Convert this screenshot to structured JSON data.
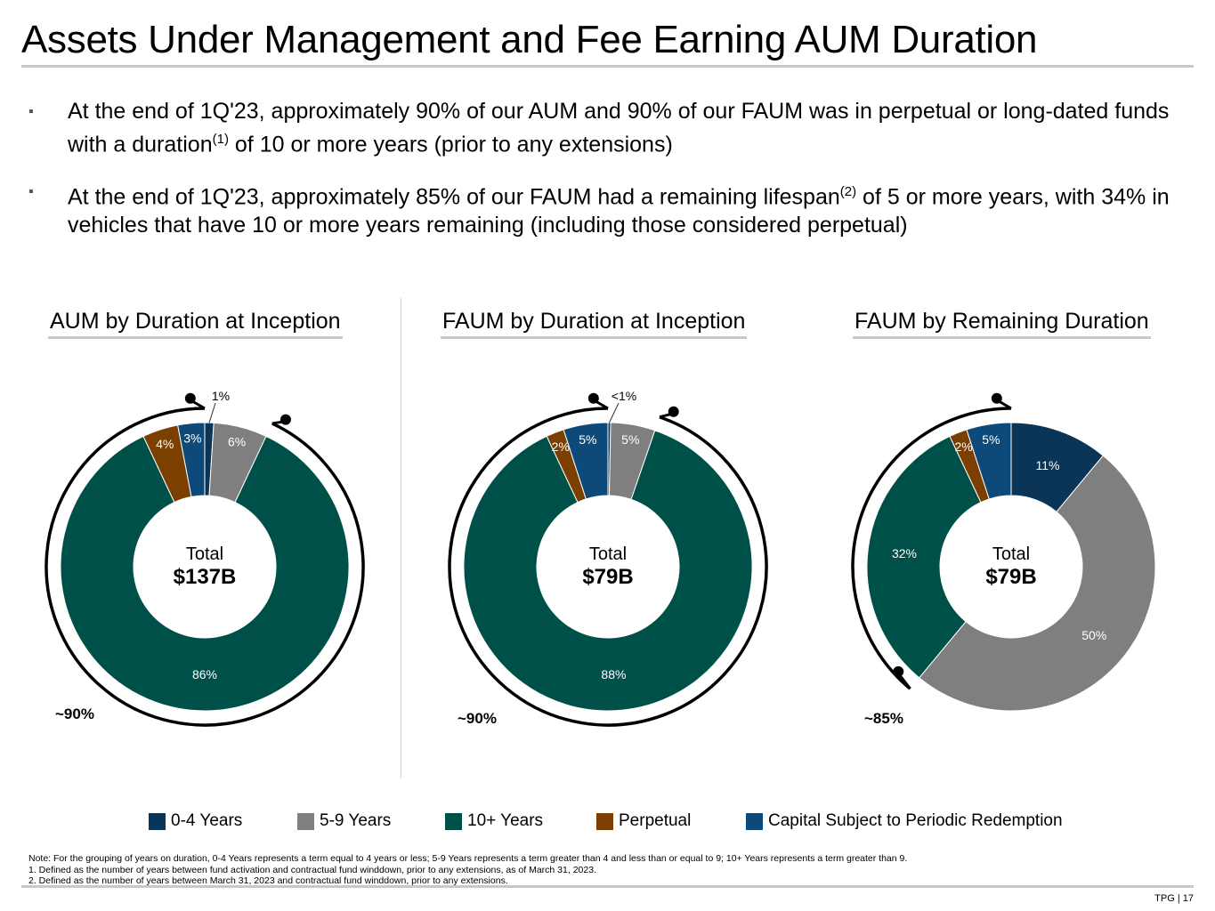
{
  "title": "Assets Under Management and Fee Earning AUM Duration",
  "bullets": [
    {
      "pre": "At the end of 1Q'23, approximately 90% of our AUM and 90% of our FAUM was in perpetual or long-dated funds with a duration",
      "sup": "(1)",
      "post": " of 10 or more years (prior to any extensions)"
    },
    {
      "pre": "At the end of 1Q'23, approximately 85% of our FAUM had a remaining lifespan",
      "sup": "(2)",
      "post": " of 5 or more years, with 34% in vehicles that have 10 or more years remaining (including those considered perpetual)"
    }
  ],
  "bullet_mark": "▪",
  "colors": {
    "0-4 Years": "#0b3556",
    "5-9 Years": "#7f7f7f",
    "10+ Years": "#00504a",
    "Perpetual": "#7b3f00",
    "Capital Subject to Periodic Redemption": "#0d4a7a"
  },
  "chart_data": [
    {
      "type": "pie",
      "title": "AUM by Duration at Inception",
      "center_label": "Total",
      "center_value": "$137B",
      "bracket_label": "~90%",
      "slices": [
        {
          "category": "0-4 Years",
          "value": 1,
          "label": "1%"
        },
        {
          "category": "5-9 Years",
          "value": 6,
          "label": "6%"
        },
        {
          "category": "10+ Years",
          "value": 86,
          "label": "86%"
        },
        {
          "category": "Perpetual",
          "value": 4,
          "label": "4%"
        },
        {
          "category": "Capital Subject to Periodic Redemption",
          "value": 3,
          "label": "3%"
        }
      ]
    },
    {
      "type": "pie",
      "title": "FAUM by Duration at Inception",
      "center_label": "Total",
      "center_value": "$79B",
      "bracket_label": "~90%",
      "slices": [
        {
          "category": "0-4 Years",
          "value": 0.3,
          "label": "<1%"
        },
        {
          "category": "5-9 Years",
          "value": 5,
          "label": "5%"
        },
        {
          "category": "10+ Years",
          "value": 88,
          "label": "88%"
        },
        {
          "category": "Perpetual",
          "value": 2,
          "label": "2%"
        },
        {
          "category": "Capital Subject to Periodic Redemption",
          "value": 5,
          "label": "5%"
        }
      ]
    },
    {
      "type": "pie",
      "title": "FAUM by Remaining Duration",
      "center_label": "Total",
      "center_value": "$79B",
      "bracket_label": "~85%",
      "slices": [
        {
          "category": "0-4 Years",
          "value": 11,
          "label": "11%"
        },
        {
          "category": "5-9 Years",
          "value": 50,
          "label": "50%"
        },
        {
          "category": "10+ Years",
          "value": 32,
          "label": "32%"
        },
        {
          "category": "Perpetual",
          "value": 2,
          "label": "2%"
        },
        {
          "category": "Capital Subject to Periodic Redemption",
          "value": 5,
          "label": "5%"
        }
      ]
    }
  ],
  "legend": [
    "0-4 Years",
    "5-9 Years",
    "10+ Years",
    "Perpetual",
    "Capital Subject to Periodic Redemption"
  ],
  "notes": [
    "Note: For the grouping of years on duration, 0-4 Years represents a term equal to 4 years or less; 5-9 Years represents a term greater than 4 and less than or equal to 9; 10+ Years represents a term greater than 9.",
    "1. Defined as the number of years between fund activation and contractual fund winddown, prior to any extensions, as of March 31, 2023.",
    "2. Defined as the number of years between March 31, 2023 and contractual fund winddown, prior to any extensions."
  ],
  "footer": "TPG | 17"
}
